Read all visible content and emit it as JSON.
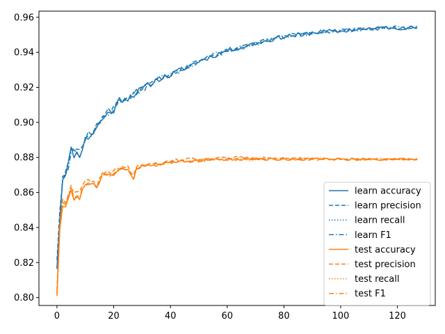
{
  "chart_data": {
    "type": "line",
    "title": "",
    "xlabel": "",
    "ylabel": "",
    "xlim": [
      -6.35,
      133.35
    ],
    "ylim": [
      0.7955,
      0.9635
    ],
    "xticks": [
      0,
      20,
      40,
      60,
      80,
      100,
      120
    ],
    "xtick_labels": [
      "0",
      "20",
      "40",
      "60",
      "80",
      "100",
      "120"
    ],
    "yticks": [
      0.8,
      0.82,
      0.84,
      0.86,
      0.88,
      0.9,
      0.92,
      0.94,
      0.96
    ],
    "ytick_labels": [
      "0.80",
      "0.82",
      "0.84",
      "0.86",
      "0.88",
      "0.90",
      "0.92",
      "0.94",
      "0.96"
    ],
    "grid": false,
    "legend_position": "lower-right",
    "x_count": 128,
    "series": [
      {
        "name": "learn accuracy",
        "color": "#1f77b4",
        "style": "solid",
        "group": "learn",
        "anchors": [
          [
            0,
            0.818
          ],
          [
            1,
            0.845
          ],
          [
            2,
            0.868
          ],
          [
            3,
            0.872
          ],
          [
            4,
            0.876
          ],
          [
            5,
            0.884
          ],
          [
            6,
            0.882
          ],
          [
            8,
            0.882
          ],
          [
            10,
            0.89
          ],
          [
            12,
            0.893
          ],
          [
            14,
            0.897
          ],
          [
            16,
            0.902
          ],
          [
            18,
            0.905
          ],
          [
            20,
            0.907
          ],
          [
            22,
            0.913
          ],
          [
            25,
            0.914
          ],
          [
            28,
            0.917
          ],
          [
            32,
            0.921
          ],
          [
            36,
            0.925
          ],
          [
            40,
            0.927
          ],
          [
            45,
            0.931
          ],
          [
            50,
            0.935
          ],
          [
            55,
            0.938
          ],
          [
            60,
            0.941
          ],
          [
            65,
            0.943
          ],
          [
            70,
            0.945
          ],
          [
            75,
            0.947
          ],
          [
            80,
            0.949
          ],
          [
            85,
            0.95
          ],
          [
            90,
            0.951
          ],
          [
            95,
            0.952
          ],
          [
            100,
            0.952
          ],
          [
            105,
            0.953
          ],
          [
            110,
            0.953
          ],
          [
            115,
            0.954
          ],
          [
            120,
            0.954
          ],
          [
            127,
            0.954
          ]
        ],
        "noise": 0.003,
        "seed": 11
      },
      {
        "name": "learn precision",
        "color": "#1f77b4",
        "style": "dashed",
        "group": "learn",
        "anchors": [
          [
            0,
            0.823
          ],
          [
            1,
            0.85
          ],
          [
            2,
            0.869
          ],
          [
            3,
            0.874
          ],
          [
            4,
            0.878
          ],
          [
            5,
            0.885
          ],
          [
            6,
            0.884
          ],
          [
            8,
            0.884
          ],
          [
            10,
            0.891
          ],
          [
            12,
            0.894
          ],
          [
            14,
            0.898
          ],
          [
            16,
            0.903
          ],
          [
            18,
            0.906
          ],
          [
            20,
            0.908
          ],
          [
            22,
            0.913
          ],
          [
            25,
            0.914
          ],
          [
            28,
            0.917
          ],
          [
            32,
            0.921
          ],
          [
            36,
            0.925
          ],
          [
            40,
            0.927
          ],
          [
            45,
            0.931
          ],
          [
            50,
            0.935
          ],
          [
            55,
            0.938
          ],
          [
            60,
            0.941
          ],
          [
            65,
            0.943
          ],
          [
            70,
            0.945
          ],
          [
            75,
            0.947
          ],
          [
            80,
            0.949
          ],
          [
            85,
            0.95
          ],
          [
            90,
            0.951
          ],
          [
            95,
            0.952
          ],
          [
            100,
            0.952
          ],
          [
            105,
            0.953
          ],
          [
            110,
            0.953
          ],
          [
            115,
            0.954
          ],
          [
            120,
            0.954
          ],
          [
            127,
            0.954
          ]
        ],
        "noise": 0.003,
        "seed": 12
      },
      {
        "name": "learn recall",
        "color": "#1f77b4",
        "style": "dotted",
        "group": "learn",
        "anchors": [
          [
            0,
            0.818
          ],
          [
            1,
            0.845
          ],
          [
            2,
            0.868
          ],
          [
            3,
            0.872
          ],
          [
            4,
            0.876
          ],
          [
            5,
            0.884
          ],
          [
            6,
            0.882
          ],
          [
            8,
            0.882
          ],
          [
            10,
            0.89
          ],
          [
            12,
            0.893
          ],
          [
            14,
            0.897
          ],
          [
            16,
            0.902
          ],
          [
            18,
            0.905
          ],
          [
            20,
            0.907
          ],
          [
            22,
            0.913
          ],
          [
            25,
            0.914
          ],
          [
            28,
            0.917
          ],
          [
            32,
            0.921
          ],
          [
            36,
            0.925
          ],
          [
            40,
            0.927
          ],
          [
            45,
            0.931
          ],
          [
            50,
            0.935
          ],
          [
            55,
            0.938
          ],
          [
            60,
            0.941
          ],
          [
            65,
            0.943
          ],
          [
            70,
            0.945
          ],
          [
            75,
            0.947
          ],
          [
            80,
            0.949
          ],
          [
            85,
            0.95
          ],
          [
            90,
            0.951
          ],
          [
            95,
            0.952
          ],
          [
            100,
            0.952
          ],
          [
            105,
            0.953
          ],
          [
            110,
            0.953
          ],
          [
            115,
            0.954
          ],
          [
            120,
            0.954
          ],
          [
            127,
            0.954
          ]
        ],
        "noise": 0.003,
        "seed": 11
      },
      {
        "name": "learn F1",
        "color": "#1f77b4",
        "style": "dashdot",
        "group": "learn",
        "anchors": [
          [
            0,
            0.818
          ],
          [
            1,
            0.845
          ],
          [
            2,
            0.868
          ],
          [
            3,
            0.872
          ],
          [
            4,
            0.876
          ],
          [
            5,
            0.884
          ],
          [
            6,
            0.882
          ],
          [
            8,
            0.882
          ],
          [
            10,
            0.89
          ],
          [
            12,
            0.893
          ],
          [
            14,
            0.897
          ],
          [
            16,
            0.902
          ],
          [
            18,
            0.905
          ],
          [
            20,
            0.907
          ],
          [
            22,
            0.913
          ],
          [
            25,
            0.914
          ],
          [
            28,
            0.917
          ],
          [
            32,
            0.921
          ],
          [
            36,
            0.925
          ],
          [
            40,
            0.927
          ],
          [
            45,
            0.931
          ],
          [
            50,
            0.935
          ],
          [
            55,
            0.938
          ],
          [
            60,
            0.941
          ],
          [
            65,
            0.943
          ],
          [
            70,
            0.945
          ],
          [
            75,
            0.947
          ],
          [
            80,
            0.949
          ],
          [
            85,
            0.95
          ],
          [
            90,
            0.951
          ],
          [
            95,
            0.952
          ],
          [
            100,
            0.952
          ],
          [
            105,
            0.953
          ],
          [
            110,
            0.953
          ],
          [
            115,
            0.954
          ],
          [
            120,
            0.954
          ],
          [
            127,
            0.954
          ]
        ],
        "noise": 0.003,
        "seed": 13
      },
      {
        "name": "test accuracy",
        "color": "#ff7f0e",
        "style": "solid",
        "group": "test",
        "anchors": [
          [
            0,
            0.802
          ],
          [
            1,
            0.84
          ],
          [
            2,
            0.853
          ],
          [
            3,
            0.852
          ],
          [
            4,
            0.857
          ],
          [
            5,
            0.862
          ],
          [
            6,
            0.856
          ],
          [
            8,
            0.857
          ],
          [
            10,
            0.865
          ],
          [
            12,
            0.866
          ],
          [
            14,
            0.862
          ],
          [
            16,
            0.87
          ],
          [
            18,
            0.87
          ],
          [
            20,
            0.871
          ],
          [
            22,
            0.873
          ],
          [
            25,
            0.873
          ],
          [
            27,
            0.867
          ],
          [
            28,
            0.874
          ],
          [
            30,
            0.875
          ],
          [
            33,
            0.876
          ],
          [
            36,
            0.876
          ],
          [
            40,
            0.877
          ],
          [
            45,
            0.878
          ],
          [
            50,
            0.878
          ],
          [
            55,
            0.879
          ],
          [
            60,
            0.879
          ],
          [
            65,
            0.879
          ],
          [
            70,
            0.879
          ],
          [
            75,
            0.879
          ],
          [
            80,
            0.879
          ],
          [
            90,
            0.879
          ],
          [
            100,
            0.879
          ],
          [
            110,
            0.879
          ],
          [
            120,
            0.879
          ],
          [
            127,
            0.879
          ]
        ],
        "noise": 0.0018,
        "seed": 21
      },
      {
        "name": "test precision",
        "color": "#ff7f0e",
        "style": "dashed",
        "group": "test",
        "anchors": [
          [
            0,
            0.805
          ],
          [
            1,
            0.842
          ],
          [
            2,
            0.855
          ],
          [
            3,
            0.854
          ],
          [
            4,
            0.859
          ],
          [
            5,
            0.864
          ],
          [
            6,
            0.859
          ],
          [
            8,
            0.86
          ],
          [
            10,
            0.866
          ],
          [
            12,
            0.867
          ],
          [
            14,
            0.864
          ],
          [
            16,
            0.871
          ],
          [
            18,
            0.871
          ],
          [
            20,
            0.872
          ],
          [
            22,
            0.874
          ],
          [
            25,
            0.874
          ],
          [
            27,
            0.87
          ],
          [
            28,
            0.875
          ],
          [
            30,
            0.876
          ],
          [
            33,
            0.876
          ],
          [
            36,
            0.876
          ],
          [
            40,
            0.878
          ],
          [
            45,
            0.879
          ],
          [
            50,
            0.879
          ],
          [
            55,
            0.879
          ],
          [
            60,
            0.88
          ],
          [
            65,
            0.88
          ],
          [
            70,
            0.879
          ],
          [
            75,
            0.88
          ],
          [
            80,
            0.88
          ],
          [
            90,
            0.879
          ],
          [
            100,
            0.879
          ],
          [
            110,
            0.879
          ],
          [
            120,
            0.879
          ],
          [
            127,
            0.879
          ]
        ],
        "noise": 0.0018,
        "seed": 22
      },
      {
        "name": "test recall",
        "color": "#ff7f0e",
        "style": "dotted",
        "group": "test",
        "anchors": [
          [
            0,
            0.802
          ],
          [
            1,
            0.84
          ],
          [
            2,
            0.853
          ],
          [
            3,
            0.852
          ],
          [
            4,
            0.857
          ],
          [
            5,
            0.862
          ],
          [
            6,
            0.856
          ],
          [
            8,
            0.857
          ],
          [
            10,
            0.865
          ],
          [
            12,
            0.866
          ],
          [
            14,
            0.862
          ],
          [
            16,
            0.87
          ],
          [
            18,
            0.87
          ],
          [
            20,
            0.871
          ],
          [
            22,
            0.873
          ],
          [
            25,
            0.873
          ],
          [
            27,
            0.867
          ],
          [
            28,
            0.874
          ],
          [
            30,
            0.875
          ],
          [
            33,
            0.876
          ],
          [
            36,
            0.876
          ],
          [
            40,
            0.877
          ],
          [
            45,
            0.878
          ],
          [
            50,
            0.878
          ],
          [
            55,
            0.879
          ],
          [
            60,
            0.879
          ],
          [
            65,
            0.879
          ],
          [
            70,
            0.879
          ],
          [
            75,
            0.879
          ],
          [
            80,
            0.879
          ],
          [
            90,
            0.879
          ],
          [
            100,
            0.879
          ],
          [
            110,
            0.879
          ],
          [
            120,
            0.879
          ],
          [
            127,
            0.879
          ]
        ],
        "noise": 0.0018,
        "seed": 21
      },
      {
        "name": "test F1",
        "color": "#ff7f0e",
        "style": "dashdot",
        "group": "test",
        "anchors": [
          [
            0,
            0.803
          ],
          [
            1,
            0.841
          ],
          [
            2,
            0.854
          ],
          [
            3,
            0.853
          ],
          [
            4,
            0.858
          ],
          [
            5,
            0.863
          ],
          [
            6,
            0.857
          ],
          [
            8,
            0.858
          ],
          [
            10,
            0.865
          ],
          [
            12,
            0.866
          ],
          [
            14,
            0.863
          ],
          [
            16,
            0.87
          ],
          [
            18,
            0.87
          ],
          [
            20,
            0.871
          ],
          [
            22,
            0.873
          ],
          [
            25,
            0.873
          ],
          [
            27,
            0.868
          ],
          [
            28,
            0.874
          ],
          [
            30,
            0.875
          ],
          [
            33,
            0.876
          ],
          [
            36,
            0.876
          ],
          [
            40,
            0.877
          ],
          [
            45,
            0.878
          ],
          [
            50,
            0.878
          ],
          [
            55,
            0.879
          ],
          [
            60,
            0.879
          ],
          [
            65,
            0.879
          ],
          [
            70,
            0.879
          ],
          [
            75,
            0.879
          ],
          [
            80,
            0.879
          ],
          [
            90,
            0.879
          ],
          [
            100,
            0.879
          ],
          [
            110,
            0.879
          ],
          [
            120,
            0.879
          ],
          [
            127,
            0.879
          ]
        ],
        "noise": 0.0018,
        "seed": 23
      }
    ]
  }
}
